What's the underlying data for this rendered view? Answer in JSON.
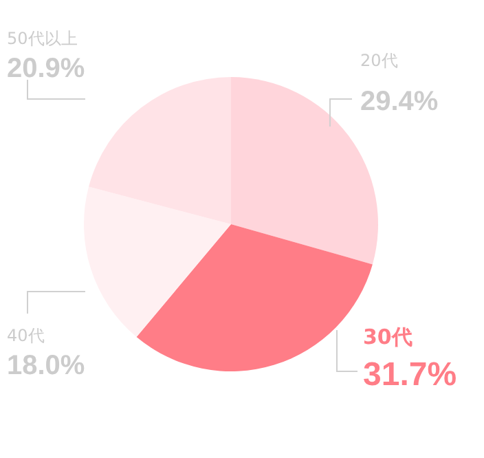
{
  "chart_data": {
    "type": "pie",
    "categories": [
      "20代",
      "30代",
      "40代",
      "50代以上"
    ],
    "values": [
      29.4,
      31.7,
      18.0,
      20.9
    ],
    "value_labels": [
      "29.4%",
      "31.7%",
      "18.0%",
      "20.9%"
    ],
    "colors": [
      "#ffd5db",
      "#ff7d87",
      "#fff0f2",
      "#ffe3e7"
    ]
  }
}
